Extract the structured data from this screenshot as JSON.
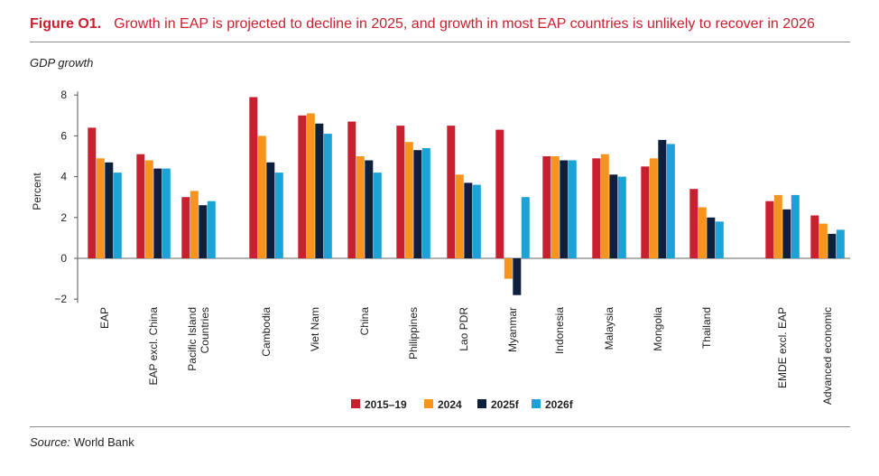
{
  "header": {
    "figure_label": "Figure O1.",
    "title": "Growth in EAP is projected to decline in 2025, and growth in most EAP countries is unlikely to recover in 2026",
    "subtitle": "GDP growth"
  },
  "source": {
    "label": "Source:",
    "text": "World Bank"
  },
  "chart_data": {
    "type": "bar",
    "title": "Growth in EAP is projected to decline in 2025, and growth in most EAP countries is unlikely to recover in 2026",
    "subtitle": "GDP growth",
    "ylabel": "Percent",
    "xlabel": "",
    "ylim": [
      -2,
      8
    ],
    "yticks": [
      -2,
      0,
      2,
      4,
      6,
      8
    ],
    "ytick_labels": [
      "−2",
      "0",
      "2",
      "4",
      "6",
      "8"
    ],
    "grid": false,
    "legend_position": "bottom",
    "categories": [
      "EAP",
      "EAP excl. China",
      "Pacific Island Countries",
      "Cambodia",
      "Viet Nam",
      "China",
      "Philippines",
      "Lao PDR",
      "Myanmar",
      "Indonesia",
      "Malaysia",
      "Mongolia",
      "Thailand",
      "EMDE excl. EAP",
      "Advanced economic"
    ],
    "category_label_lines": [
      [
        "EAP"
      ],
      [
        "EAP excl. China"
      ],
      [
        "Pacific Island",
        "Countries"
      ],
      [
        "Cambodia"
      ],
      [
        "Viet Nam"
      ],
      [
        "China"
      ],
      [
        "Philippines"
      ],
      [
        "Lao PDR"
      ],
      [
        "Myanmar"
      ],
      [
        "Indonesia"
      ],
      [
        "Malaysia"
      ],
      [
        "Mongolia"
      ],
      [
        "Thailand"
      ],
      [
        "EMDE excl. EAP"
      ],
      [
        "Advanced economic"
      ]
    ],
    "series": [
      {
        "name": "2015–19",
        "color": "#c8202f",
        "values": [
          6.4,
          5.1,
          3.0,
          7.9,
          7.0,
          6.7,
          6.5,
          6.5,
          6.3,
          5.0,
          4.9,
          4.5,
          3.4,
          2.8,
          2.1
        ]
      },
      {
        "name": "2024",
        "color": "#f7941d",
        "values": [
          4.9,
          4.8,
          3.3,
          6.0,
          7.1,
          5.0,
          5.7,
          4.1,
          -1.0,
          5.0,
          5.1,
          4.9,
          2.5,
          3.1,
          1.7
        ]
      },
      {
        "name": "2025f",
        "color": "#0d1f3c",
        "values": [
          4.7,
          4.4,
          2.6,
          4.7,
          6.6,
          4.8,
          5.3,
          3.7,
          -1.8,
          4.8,
          4.1,
          5.8,
          2.0,
          2.4,
          1.2
        ]
      },
      {
        "name": "2026f",
        "color": "#1ca2d6",
        "values": [
          4.2,
          4.4,
          2.8,
          4.2,
          6.1,
          4.2,
          5.4,
          3.6,
          3.0,
          4.8,
          4.0,
          5.6,
          1.8,
          3.1,
          1.4
        ]
      }
    ]
  }
}
